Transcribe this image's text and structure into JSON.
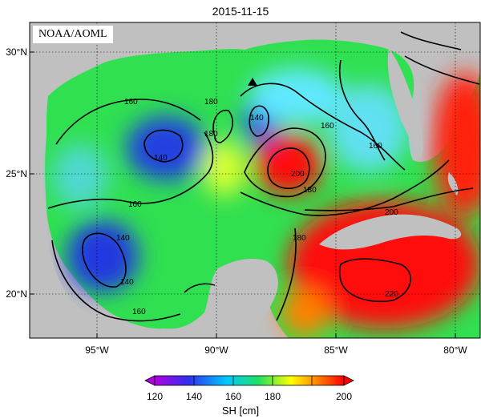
{
  "title": "2015-11-15",
  "credit": "NOAA/AOML",
  "lat_labels": [
    "30°N",
    "25°N",
    "20°N"
  ],
  "lon_labels": [
    "95°W",
    "90°W",
    "85°W",
    "80°W"
  ],
  "contour_labels": [
    "160",
    "140",
    "140",
    "180",
    "140",
    "180",
    "160",
    "160",
    "180",
    "200",
    "160",
    "140",
    "180",
    "200",
    "220",
    "160"
  ],
  "colorbar": {
    "title": "SH [cm]",
    "ticks": [
      "120",
      "140",
      "160",
      "180",
      "200"
    ],
    "colors": [
      "#b000e0",
      "#3030f0",
      "#00c8ff",
      "#20e060",
      "#ffff00",
      "#ff8000",
      "#ff0000"
    ]
  },
  "colors": {
    "land": "#c0c0c0",
    "ocean_low": "#2040e0",
    "ocean_mid": "#30e040",
    "ocean_high": "#ff1010"
  }
}
